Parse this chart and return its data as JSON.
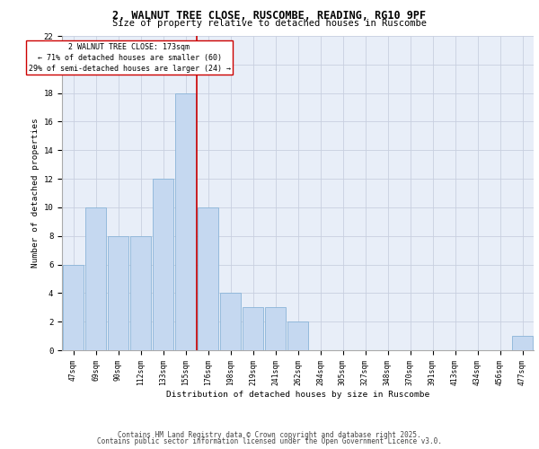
{
  "title_line1": "2, WALNUT TREE CLOSE, RUSCOMBE, READING, RG10 9PF",
  "title_line2": "Size of property relative to detached houses in Ruscombe",
  "xlabel": "Distribution of detached houses by size in Ruscombe",
  "ylabel": "Number of detached properties",
  "categories": [
    "47sqm",
    "69sqm",
    "90sqm",
    "112sqm",
    "133sqm",
    "155sqm",
    "176sqm",
    "198sqm",
    "219sqm",
    "241sqm",
    "262sqm",
    "284sqm",
    "305sqm",
    "327sqm",
    "348sqm",
    "370sqm",
    "391sqm",
    "413sqm",
    "434sqm",
    "456sqm",
    "477sqm"
  ],
  "values": [
    6,
    10,
    8,
    8,
    12,
    18,
    10,
    4,
    3,
    3,
    2,
    0,
    0,
    0,
    0,
    0,
    0,
    0,
    0,
    0,
    1
  ],
  "bar_color": "#c5d8f0",
  "bar_edgecolor": "#8ab4d8",
  "vline_x": 5.5,
  "vline_color": "#cc0000",
  "ylim": [
    0,
    22
  ],
  "yticks": [
    0,
    2,
    4,
    6,
    8,
    10,
    12,
    14,
    16,
    18,
    20,
    22
  ],
  "annotation_title": "2 WALNUT TREE CLOSE: 173sqm",
  "annotation_line2": "← 71% of detached houses are smaller (60)",
  "annotation_line3": "29% of semi-detached houses are larger (24) →",
  "annotation_box_color": "#cc0000",
  "footer_line1": "Contains HM Land Registry data © Crown copyright and database right 2025.",
  "footer_line2": "Contains public sector information licensed under the Open Government Licence v3.0.",
  "background_color": "#e8eef8",
  "grid_color": "#c8cfe0"
}
